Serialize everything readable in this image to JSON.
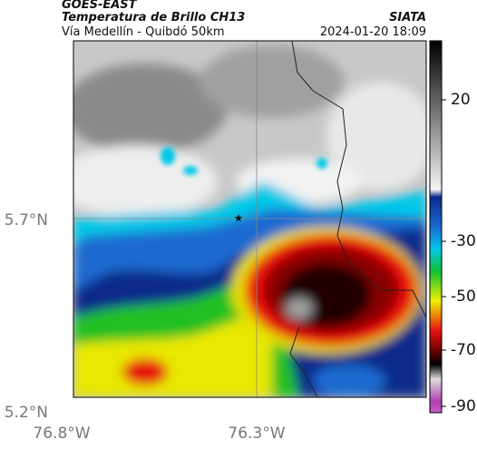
{
  "header": {
    "title": "GOES-EAST",
    "subtitle": "Temperatura de Brillo CH13",
    "location": "Vía Medellín - Quibdó 50km",
    "source": "SIATA",
    "datetime": "2024-01-20 18:09"
  },
  "map": {
    "lat_labels": [
      "5.7°N",
      "5.2°N"
    ],
    "lon_labels": [
      "76.8°W",
      "76.3°W"
    ]
  },
  "colorbar": {
    "ticks": [
      "20",
      "-30",
      "-50",
      "-70",
      "-90"
    ]
  }
}
